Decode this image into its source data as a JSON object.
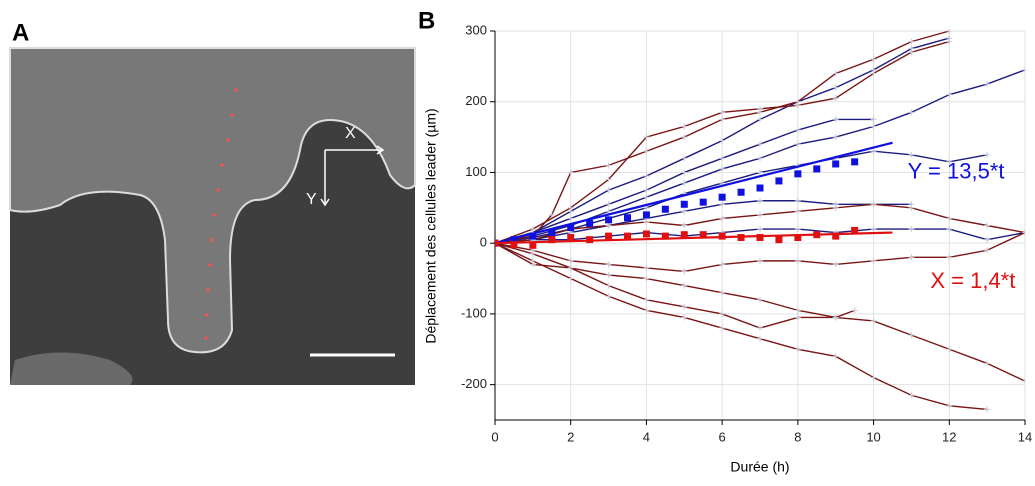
{
  "panel_labels": [
    "A",
    "B"
  ],
  "image": {
    "axis_labels": [
      "X",
      "Y"
    ]
  },
  "chart_data": {
    "type": "line",
    "ylabel": "Déplacement des cellules leader (µm)",
    "xlabel": "Durée (h)",
    "xlim": [
      0,
      14
    ],
    "xticks": [
      0,
      2,
      4,
      6,
      8,
      10,
      12,
      14
    ],
    "ylim": [
      -250,
      300
    ],
    "yticks": [
      -200,
      -100,
      0,
      100,
      200,
      300
    ],
    "grid": true,
    "annotations": [
      {
        "text": "Y = 13,5*t",
        "x": 10.9,
        "y": 100,
        "color": "#1010e0"
      },
      {
        "text": "X = 1,4*t",
        "x": 11.5,
        "y": -55,
        "color": "#e01010"
      }
    ],
    "series": [
      {
        "color": "#1c1c80",
        "marker": "plus",
        "x": [
          0,
          1,
          2,
          3,
          4,
          5,
          6,
          7,
          8,
          9,
          10,
          11,
          12
        ],
        "values": [
          0,
          15,
          45,
          75,
          95,
          120,
          145,
          175,
          200,
          220,
          245,
          275,
          290
        ]
      },
      {
        "color": "#1c1c80",
        "marker": "plus",
        "x": [
          0,
          1,
          2,
          3,
          4,
          5,
          6,
          7,
          8,
          9,
          10,
          11,
          12,
          13,
          14
        ],
        "values": [
          0,
          10,
          25,
          45,
          65,
          85,
          105,
          120,
          140,
          150,
          165,
          185,
          210,
          225,
          245
        ]
      },
      {
        "color": "#1c1c80",
        "marker": "plus",
        "x": [
          0,
          1,
          2,
          3,
          4,
          5,
          6,
          7,
          8,
          9,
          10
        ],
        "values": [
          0,
          15,
          35,
          55,
          75,
          100,
          120,
          140,
          160,
          175,
          175
        ]
      },
      {
        "color": "#1c1c80",
        "marker": "plus",
        "x": [
          0,
          1,
          2,
          3,
          4,
          5,
          6,
          7,
          8,
          9,
          10,
          11,
          12,
          13
        ],
        "values": [
          0,
          8,
          20,
          35,
          50,
          70,
          85,
          100,
          110,
          120,
          130,
          125,
          115,
          125
        ]
      },
      {
        "color": "#1c1c80",
        "marker": "plus",
        "x": [
          0,
          1,
          2,
          3,
          4,
          5,
          6,
          7,
          8,
          9,
          10,
          11
        ],
        "values": [
          0,
          5,
          15,
          25,
          35,
          45,
          55,
          60,
          60,
          55,
          55,
          55
        ]
      },
      {
        "color": "#1c1c80",
        "marker": "plus",
        "x": [
          0,
          1,
          2,
          3,
          4,
          5,
          6,
          7,
          8,
          9,
          10,
          11,
          12,
          13,
          14
        ],
        "values": [
          0,
          5,
          5,
          10,
          15,
          10,
          15,
          20,
          20,
          15,
          20,
          20,
          20,
          5,
          15
        ]
      },
      {
        "color": "#7a1515",
        "marker": "plus",
        "x": [
          0,
          1,
          1.5,
          2,
          3,
          4,
          5,
          6,
          7,
          8,
          9,
          10,
          11,
          12
        ],
        "values": [
          0,
          10,
          40,
          100,
          110,
          130,
          150,
          175,
          185,
          200,
          240,
          260,
          285,
          300
        ]
      },
      {
        "color": "#7a1515",
        "marker": "plus",
        "x": [
          0,
          1,
          2,
          3,
          4,
          5,
          6,
          7,
          8,
          9,
          10,
          11,
          12
        ],
        "values": [
          0,
          20,
          50,
          90,
          150,
          165,
          185,
          190,
          195,
          205,
          240,
          270,
          285
        ]
      },
      {
        "color": "#7a1515",
        "marker": "plus",
        "x": [
          0,
          1,
          2,
          3,
          4,
          5,
          6,
          7,
          8,
          9,
          10,
          11,
          12,
          13,
          14
        ],
        "values": [
          0,
          5,
          20,
          25,
          30,
          25,
          35,
          40,
          45,
          50,
          55,
          50,
          35,
          25,
          15
        ]
      },
      {
        "color": "#7a1515",
        "marker": "plus",
        "x": [
          0,
          1,
          2,
          3,
          4,
          5,
          6,
          7,
          8,
          9,
          10,
          11,
          12,
          13,
          14
        ],
        "values": [
          0,
          -10,
          -25,
          -30,
          -35,
          -40,
          -30,
          -25,
          -25,
          -30,
          -25,
          -20,
          -20,
          -10,
          15
        ]
      },
      {
        "color": "#7a1515",
        "marker": "plus",
        "x": [
          0,
          1,
          2,
          3,
          4,
          5,
          6,
          7,
          8,
          9,
          10,
          11,
          12,
          13,
          14
        ],
        "values": [
          0,
          -30,
          -35,
          -45,
          -50,
          -60,
          -70,
          -80,
          -95,
          -105,
          -110,
          -130,
          -150,
          -170,
          -195
        ]
      },
      {
        "color": "#7a1515",
        "marker": "plus",
        "x": [
          0,
          1,
          2,
          3,
          4,
          5,
          6,
          7,
          8,
          9,
          10,
          11,
          12,
          13
        ],
        "values": [
          0,
          -25,
          -50,
          -75,
          -95,
          -105,
          -120,
          -135,
          -150,
          -160,
          -190,
          -215,
          -230,
          -235
        ]
      },
      {
        "color": "#7a1515",
        "marker": "plus",
        "x": [
          0,
          1,
          2,
          3,
          4,
          5,
          6,
          7,
          8,
          9,
          9.5
        ],
        "values": [
          0,
          -15,
          -35,
          -60,
          -80,
          -90,
          -100,
          -120,
          -105,
          -105,
          -95
        ]
      },
      {
        "color": "#1010e0",
        "marker": "none",
        "x": [
          0,
          10.5
        ],
        "values": [
          0,
          142
        ]
      },
      {
        "color": "#e01010",
        "marker": "none",
        "x": [
          0,
          10.5
        ],
        "values": [
          0,
          15
        ]
      },
      {
        "color": "#1010e0",
        "marker": "square",
        "x": [
          0,
          0.5,
          1,
          1.5,
          2,
          2.5,
          3,
          3.5,
          4,
          4.5,
          5,
          5.5,
          6,
          6.5,
          7,
          7.5,
          8,
          8.5,
          9,
          9.5
        ],
        "values": [
          0,
          5,
          10,
          15,
          22,
          28,
          33,
          36,
          40,
          48,
          55,
          58,
          65,
          72,
          78,
          88,
          98,
          105,
          112,
          115
        ]
      },
      {
        "color": "#e01010",
        "marker": "square",
        "x": [
          0,
          0.5,
          1,
          1.5,
          2,
          2.5,
          3,
          3.5,
          4,
          4.5,
          5,
          5.5,
          6,
          6.5,
          7,
          7.5,
          8,
          8.5,
          9,
          9.5
        ],
        "values": [
          0,
          -2,
          -3,
          5,
          8,
          5,
          10,
          10,
          13,
          10,
          12,
          12,
          10,
          8,
          8,
          5,
          8,
          12,
          10,
          18
        ]
      }
    ]
  }
}
